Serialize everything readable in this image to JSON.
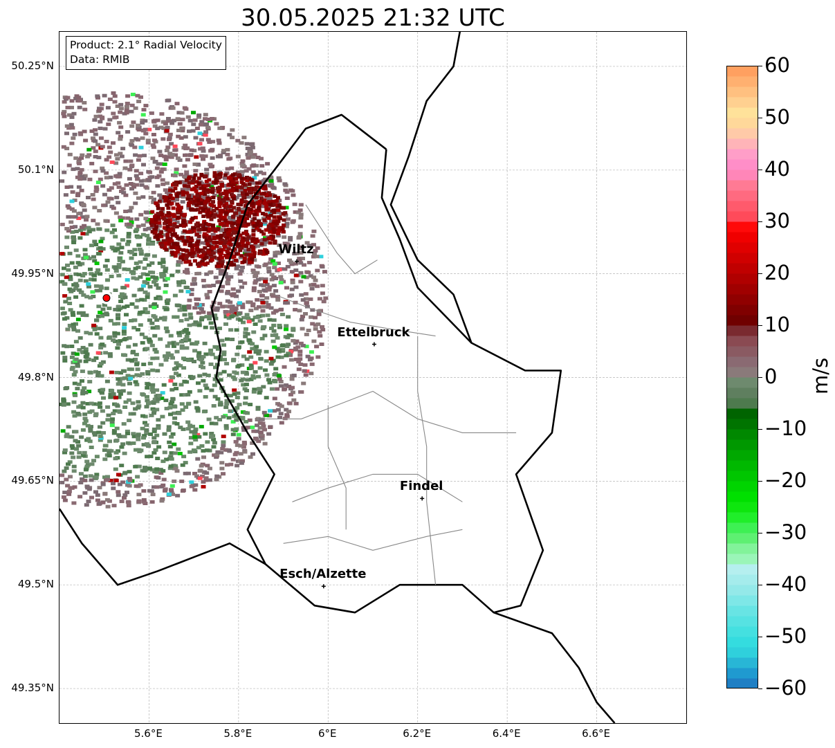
{
  "title": "30.05.2025 21:32 UTC",
  "info": {
    "product": "Product: 2.1° Radial Velocity",
    "data_source": "Data: RMIB"
  },
  "map": {
    "lon_range": [
      5.4,
      6.8
    ],
    "lat_range": [
      49.3,
      50.3
    ],
    "grid": true,
    "lat_ticks": [
      {
        "value": 50.25,
        "label": "50.25°N"
      },
      {
        "value": 50.1,
        "label": "50.1°N"
      },
      {
        "value": 49.95,
        "label": "49.95°N"
      },
      {
        "value": 49.8,
        "label": "49.8°N"
      },
      {
        "value": 49.65,
        "label": "49.65°N"
      },
      {
        "value": 49.5,
        "label": "49.5°N"
      },
      {
        "value": 49.35,
        "label": "49.35°N"
      }
    ],
    "lon_ticks": [
      {
        "value": 5.6,
        "label": "5.6°E"
      },
      {
        "value": 5.8,
        "label": "5.8°E"
      },
      {
        "value": 6.0,
        "label": "6°E"
      },
      {
        "value": 6.2,
        "label": "6.2°E"
      },
      {
        "value": 6.4,
        "label": "6.4°E"
      },
      {
        "value": 6.6,
        "label": "6.6°E"
      }
    ],
    "cities": [
      {
        "name": "Wiltz",
        "lon": 5.93,
        "lat": 49.968
      },
      {
        "name": "Ettelbruck",
        "lon": 6.103,
        "lat": 49.848
      },
      {
        "name": "Findel",
        "lon": 6.21,
        "lat": 49.625
      },
      {
        "name": "Esch/Alzette",
        "lon": 5.99,
        "lat": 49.498
      }
    ],
    "radar_site": {
      "lon": 5.505,
      "lat": 49.915,
      "color": "#ff0000"
    }
  },
  "colorbar": {
    "unit": "m/s",
    "min": -60,
    "max": 60,
    "ticks": [
      {
        "value": 60,
        "label": "60"
      },
      {
        "value": 50,
        "label": "50"
      },
      {
        "value": 40,
        "label": "40"
      },
      {
        "value": 30,
        "label": "30"
      },
      {
        "value": 20,
        "label": "20"
      },
      {
        "value": 10,
        "label": "10"
      },
      {
        "value": 0,
        "label": "0"
      },
      {
        "value": -10,
        "label": "−10"
      },
      {
        "value": -20,
        "label": "−20"
      },
      {
        "value": -30,
        "label": "−30"
      },
      {
        "value": -40,
        "label": "−40"
      },
      {
        "value": -50,
        "label": "−50"
      },
      {
        "value": -60,
        "label": "−60"
      }
    ],
    "bands": [
      {
        "from": -60,
        "to": -58,
        "color": "#1f7fc4"
      },
      {
        "from": -58,
        "to": -56,
        "color": "#1f9ad0"
      },
      {
        "from": -56,
        "to": -54,
        "color": "#28b6d6"
      },
      {
        "from": -54,
        "to": -52,
        "color": "#2fd0dc"
      },
      {
        "from": -52,
        "to": -50,
        "color": "#34dcdf"
      },
      {
        "from": -50,
        "to": -48,
        "color": "#44e0e0"
      },
      {
        "from": -48,
        "to": -46,
        "color": "#56e2e2"
      },
      {
        "from": -46,
        "to": -44,
        "color": "#68e4e4"
      },
      {
        "from": -44,
        "to": -42,
        "color": "#7ee7e7"
      },
      {
        "from": -42,
        "to": -40,
        "color": "#94e9e9"
      },
      {
        "from": -40,
        "to": -38,
        "color": "#a5ecec"
      },
      {
        "from": -38,
        "to": -36,
        "color": "#b5efef"
      },
      {
        "from": -36,
        "to": -34,
        "color": "#9af5b8"
      },
      {
        "from": -34,
        "to": -32,
        "color": "#82f39a"
      },
      {
        "from": -32,
        "to": -30,
        "color": "#5ef072"
      },
      {
        "from": -30,
        "to": -28,
        "color": "#3ef054"
      },
      {
        "from": -28,
        "to": -26,
        "color": "#20ee2a"
      },
      {
        "from": -26,
        "to": -24,
        "color": "#0ee60e"
      },
      {
        "from": -24,
        "to": -22,
        "color": "#00e000"
      },
      {
        "from": -22,
        "to": -20,
        "color": "#00d400"
      },
      {
        "from": -20,
        "to": -18,
        "color": "#00c600"
      },
      {
        "from": -18,
        "to": -16,
        "color": "#00b800"
      },
      {
        "from": -16,
        "to": -14,
        "color": "#00a800"
      },
      {
        "from": -14,
        "to": -12,
        "color": "#009800"
      },
      {
        "from": -12,
        "to": -10,
        "color": "#008800"
      },
      {
        "from": -10,
        "to": -8,
        "color": "#007400"
      },
      {
        "from": -8,
        "to": -6,
        "color": "#006400"
      },
      {
        "from": -6,
        "to": -4,
        "color": "#4e7a4e"
      },
      {
        "from": -4,
        "to": -2,
        "color": "#5f7f5f"
      },
      {
        "from": -2,
        "to": 0,
        "color": "#6e8a6e"
      },
      {
        "from": 0,
        "to": 2,
        "color": "#8a7a7a"
      },
      {
        "from": 2,
        "to": 4,
        "color": "#8a6a72"
      },
      {
        "from": 4,
        "to": 6,
        "color": "#8a5a62"
      },
      {
        "from": 6,
        "to": 8,
        "color": "#8a4a52"
      },
      {
        "from": 8,
        "to": 10,
        "color": "#7a2a30"
      },
      {
        "from": 10,
        "to": 12,
        "color": "#700000"
      },
      {
        "from": 12,
        "to": 14,
        "color": "#800000"
      },
      {
        "from": 14,
        "to": 16,
        "color": "#900000"
      },
      {
        "from": 16,
        "to": 18,
        "color": "#a00000"
      },
      {
        "from": 18,
        "to": 20,
        "color": "#b00000"
      },
      {
        "from": 20,
        "to": 22,
        "color": "#c00000"
      },
      {
        "from": 22,
        "to": 24,
        "color": "#d00000"
      },
      {
        "from": 24,
        "to": 26,
        "color": "#e00000"
      },
      {
        "from": 26,
        "to": 28,
        "color": "#f00000"
      },
      {
        "from": 28,
        "to": 30,
        "color": "#ff0a0a"
      },
      {
        "from": 30,
        "to": 32,
        "color": "#ff4a5a"
      },
      {
        "from": 32,
        "to": 34,
        "color": "#ff5a6c"
      },
      {
        "from": 34,
        "to": 36,
        "color": "#ff6a80"
      },
      {
        "from": 36,
        "to": 38,
        "color": "#ff7a94"
      },
      {
        "from": 38,
        "to": 40,
        "color": "#ff86b8"
      },
      {
        "from": 40,
        "to": 42,
        "color": "#ff8ec8"
      },
      {
        "from": 42,
        "to": 44,
        "color": "#ff9ec8"
      },
      {
        "from": 44,
        "to": 46,
        "color": "#ffb4b8"
      },
      {
        "from": 46,
        "to": 48,
        "color": "#ffcaa8"
      },
      {
        "from": 48,
        "to": 50,
        "color": "#ffd89a"
      },
      {
        "from": 50,
        "to": 52,
        "color": "#ffe29a"
      },
      {
        "from": 52,
        "to": 54,
        "color": "#ffd090"
      },
      {
        "from": 54,
        "to": 56,
        "color": "#ffc080"
      },
      {
        "from": 56,
        "to": 58,
        "color": "#ffb070"
      },
      {
        "from": 58,
        "to": 60,
        "color": "#ffa060"
      }
    ]
  }
}
